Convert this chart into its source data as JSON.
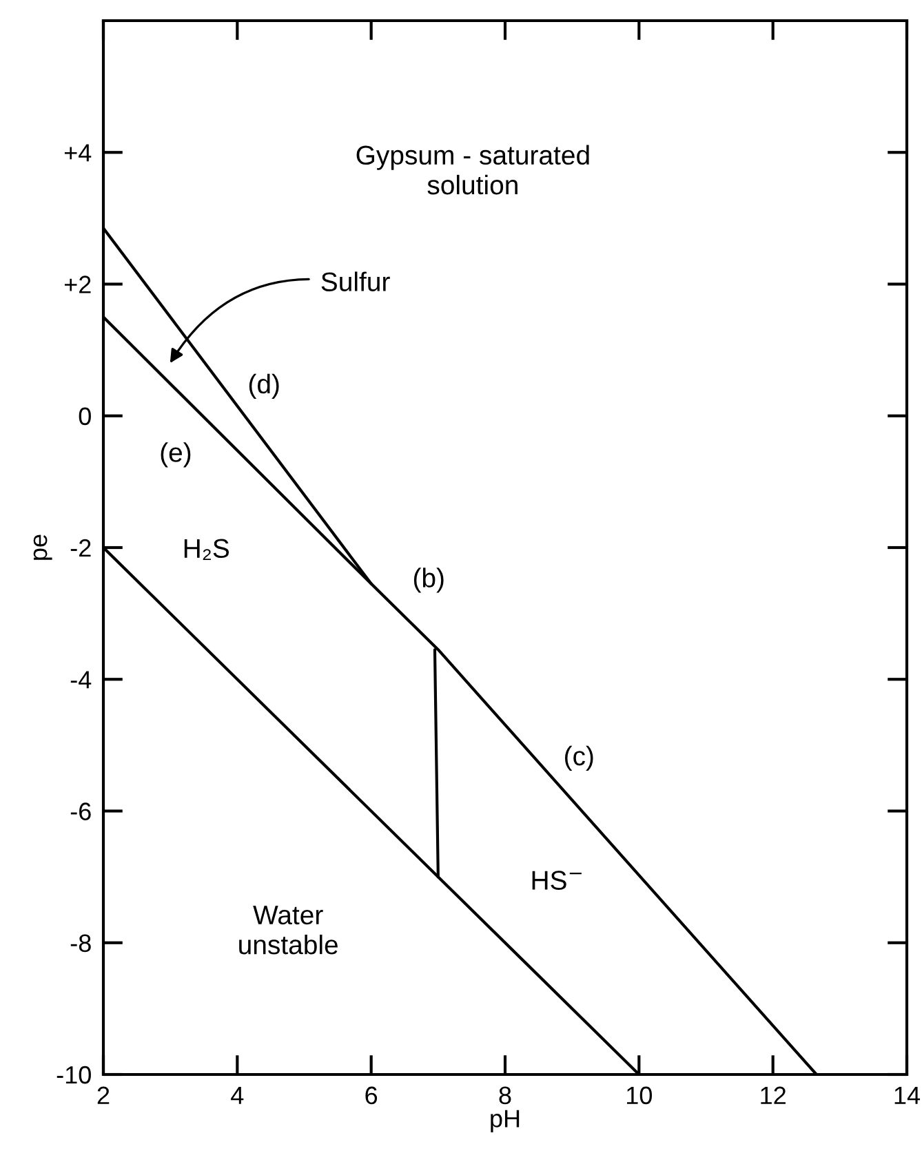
{
  "chart_data": {
    "type": "line",
    "xlabel": "pH",
    "ylabel": "pe",
    "xlim": [
      2,
      14
    ],
    "ylim": [
      -10,
      6
    ],
    "xticks": [
      2,
      4,
      6,
      8,
      10,
      12,
      14
    ],
    "yticks": [
      {
        "value": -10,
        "label": "-10"
      },
      {
        "value": -8,
        "label": "-8"
      },
      {
        "value": -6,
        "label": "-6"
      },
      {
        "value": -4,
        "label": "-4"
      },
      {
        "value": -2,
        "label": "-2"
      },
      0,
      {
        "value": 2,
        "label": "+2"
      },
      {
        "value": 4,
        "label": "+4"
      }
    ],
    "series": [
      {
        "color": "#000000",
        "x": [
          2,
          10
        ],
        "values": [
          -2,
          -10
        ]
      },
      {
        "color": "#000000",
        "x": [
          2,
          6,
          7,
          12.65
        ],
        "values": [
          1.5,
          -2.55,
          -3.55,
          -10
        ]
      },
      {
        "color": "#000000",
        "x": [
          2,
          6
        ],
        "values": [
          2.85,
          -2.55
        ]
      },
      {
        "color": "#000000",
        "x": [
          6.95,
          7
        ],
        "values": [
          -3.55,
          -7
        ]
      }
    ],
    "annotations": [
      "Gypsum - saturated\nsolution",
      "Sulfur",
      "(d)",
      "(e)",
      "H₂S",
      "(b)",
      "(c)",
      "HS$^{−}$",
      "Water\nunstable"
    ],
    "grid": false,
    "legend": false
  }
}
